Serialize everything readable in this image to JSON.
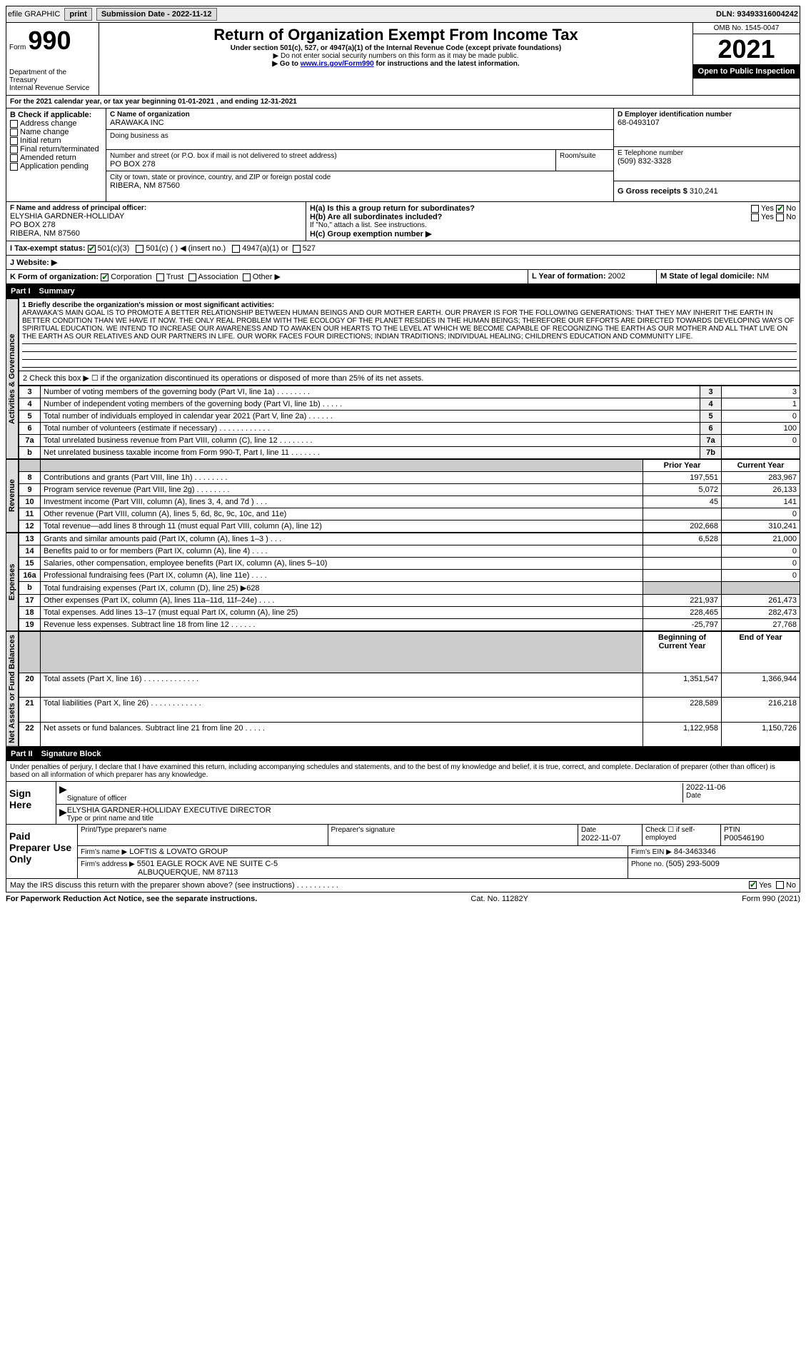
{
  "topbar": {
    "efile": "efile GRAPHIC",
    "print": "print",
    "submission_label": "Submission Date - 2022-11-12",
    "dln": "DLN: 93493316004242"
  },
  "header": {
    "form_prefix": "Form",
    "form_number": "990",
    "title": "Return of Organization Exempt From Income Tax",
    "subtitle": "Under section 501(c), 527, or 4947(a)(1) of the Internal Revenue Code (except private foundations)",
    "note1": "▶ Do not enter social security numbers on this form as it may be made public.",
    "note2_pre": "▶ Go to ",
    "note2_link": "www.irs.gov/Form990",
    "note2_post": " for instructions and the latest information.",
    "dept": "Department of the Treasury",
    "irs": "Internal Revenue Service",
    "omb": "OMB No. 1545-0047",
    "year": "2021",
    "public": "Open to Public Inspection"
  },
  "sectionA": {
    "period": "For the 2021 calendar year, or tax year beginning 01-01-2021    , and ending 12-31-2021",
    "check_label": "B Check if applicable:",
    "checks": [
      "Address change",
      "Name change",
      "Initial return",
      "Final return/terminated",
      "Amended return",
      "Application pending"
    ],
    "c_label": "C Name of organization",
    "org_name": "ARAWAKA INC",
    "dba_label": "Doing business as",
    "addr_label": "Number and street (or P.O. box if mail is not delivered to street address)",
    "room_label": "Room/suite",
    "address": "PO BOX 278",
    "city_label": "City or town, state or province, country, and ZIP or foreign postal code",
    "city": "RIBERA, NM  87560",
    "d_label": "D Employer identification number",
    "ein": "68-0493107",
    "e_label": "E Telephone number",
    "phone": "(509) 832-3328",
    "g_label": "G Gross receipts $",
    "gross": "310,241",
    "f_label": "F  Name and address of principal officer:",
    "officer_name": "ELYSHIA GARDNER-HOLLIDAY",
    "officer_addr1": "PO BOX 278",
    "officer_addr2": "RIBERA, NM  87560",
    "h_a": "H(a)  Is this a group return for subordinates?",
    "h_b": "H(b)  Are all subordinates included?",
    "h_note": "If \"No,\" attach a list. See instructions.",
    "h_c": "H(c)  Group exemption number ▶",
    "i_label": "I   Tax-exempt status:",
    "i_501c3": "501(c)(3)",
    "i_501c": "501(c) (   ) ◀ (insert no.)",
    "i_4947": "4947(a)(1) or",
    "i_527": "527",
    "j_label": "J   Website: ▶",
    "k_label": "K Form of organization:",
    "k_corp": "Corporation",
    "k_trust": "Trust",
    "k_assoc": "Association",
    "k_other": "Other ▶",
    "l_label": "L Year of formation:",
    "l_val": "2002",
    "m_label": "M State of legal domicile:",
    "m_val": "NM",
    "yes": "Yes",
    "no": "No"
  },
  "part1": {
    "label": "Part I",
    "title": "Summary",
    "side_ag": "Activities & Governance",
    "side_rev": "Revenue",
    "side_exp": "Expenses",
    "side_net": "Net Assets or Fund Balances",
    "line1_label": "1   Briefly describe the organization's mission or most significant activities:",
    "mission": "ARAWAKA'S MAIN GOAL IS TO PROMOTE A BETTER RELATIONSHIP BETWEEN HUMAN BEINGS AND OUR MOTHER EARTH. OUR PRAYER IS FOR THE FOLLOWING GENERATIONS: THAT THEY MAY INHERIT THE EARTH IN BETTER CONDITION THAN WE HAVE IT NOW. THE ONLY REAL PROBLEM WITH THE ECOLOGY OF THE PLANET RESIDES IN THE HUMAN BEINGS; THEREFORE OUR EFFORTS ARE DIRECTED TOWARDS DEVELOPING WAYS OF SPIRITUAL EDUCATION. WE INTEND TO INCREASE OUR AWARENESS AND TO AWAKEN OUR HEARTS TO THE LEVEL AT WHICH WE BECOME CAPABLE OF RECOGNIZING THE EARTH AS OUR MOTHER AND ALL THAT LIVE ON THE EARTH AS OUR RELATIVES AND OUR PARTNERS IN LIFE. OUR WORK FACES FOUR DIRECTIONS; INDIAN TRADITIONS; INDIVIDUAL HEALING; CHILDREN'S EDUCATION AND COMMUNITY LIFE.",
    "line2": "2   Check this box ▶ ☐  if the organization discontinued its operations or disposed of more than 25% of its net assets.",
    "gov_rows": [
      {
        "n": "3",
        "label": "Number of voting members of the governing body (Part VI, line 1a)   .    .    .    .    .    .    .    .",
        "box": "3",
        "val": "3"
      },
      {
        "n": "4",
        "label": "Number of independent voting members of the governing body (Part VI, line 1b)   .    .    .    .    .",
        "box": "4",
        "val": "1"
      },
      {
        "n": "5",
        "label": "Total number of individuals employed in calendar year 2021 (Part V, line 2a)   .    .    .    .    .    .",
        "box": "5",
        "val": "0"
      },
      {
        "n": "6",
        "label": "Total number of volunteers (estimate if necessary)   .    .    .    .    .    .    .    .    .    .    .    .",
        "box": "6",
        "val": "100"
      },
      {
        "n": "7a",
        "label": "Total unrelated business revenue from Part VIII, column (C), line 12   .    .    .    .    .    .    .    .",
        "box": "7a",
        "val": "0"
      },
      {
        "n": "b",
        "label": "Net unrelated business taxable income from Form 990-T, Part I, line 11   .    .    .    .    .    .    .",
        "box": "7b",
        "val": ""
      }
    ],
    "col_prior": "Prior Year",
    "col_curr": "Current Year",
    "rev_rows": [
      {
        "n": "8",
        "label": "Contributions and grants (Part VIII, line 1h)   .    .    .    .    .    .    .    .",
        "p": "197,551",
        "c": "283,967"
      },
      {
        "n": "9",
        "label": "Program service revenue (Part VIII, line 2g)   .    .    .    .    .    .    .    .",
        "p": "5,072",
        "c": "26,133"
      },
      {
        "n": "10",
        "label": "Investment income (Part VIII, column (A), lines 3, 4, and 7d )   .    .    .",
        "p": "45",
        "c": "141"
      },
      {
        "n": "11",
        "label": "Other revenue (Part VIII, column (A), lines 5, 6d, 8c, 9c, 10c, and 11e)",
        "p": "",
        "c": "0"
      },
      {
        "n": "12",
        "label": "Total revenue—add lines 8 through 11 (must equal Part VIII, column (A), line 12)",
        "p": "202,668",
        "c": "310,241"
      }
    ],
    "exp_rows": [
      {
        "n": "13",
        "label": "Grants and similar amounts paid (Part IX, column (A), lines 1–3 )   .    .    .",
        "p": "6,528",
        "c": "21,000"
      },
      {
        "n": "14",
        "label": "Benefits paid to or for members (Part IX, column (A), line 4)   .    .    .    .",
        "p": "",
        "c": "0"
      },
      {
        "n": "15",
        "label": "Salaries, other compensation, employee benefits (Part IX, column (A), lines 5–10)",
        "p": "",
        "c": "0"
      },
      {
        "n": "16a",
        "label": "Professional fundraising fees (Part IX, column (A), line 11e)   .    .    .    .",
        "p": "",
        "c": "0"
      },
      {
        "n": "b",
        "label": "Total fundraising expenses (Part IX, column (D), line 25) ▶628",
        "p": "gray",
        "c": "gray"
      },
      {
        "n": "17",
        "label": "Other expenses (Part IX, column (A), lines 11a–11d, 11f–24e)   .    .    .    .",
        "p": "221,937",
        "c": "261,473"
      },
      {
        "n": "18",
        "label": "Total expenses. Add lines 13–17 (must equal Part IX, column (A), line 25)",
        "p": "228,465",
        "c": "282,473"
      },
      {
        "n": "19",
        "label": "Revenue less expenses. Subtract line 18 from line 12   .    .    .    .    .    .",
        "p": "-25,797",
        "c": "27,768"
      }
    ],
    "col_boy": "Beginning of Current Year",
    "col_eoy": "End of Year",
    "net_rows": [
      {
        "n": "20",
        "label": "Total assets (Part X, line 16)   .    .    .    .    .    .    .    .    .    .    .    .    .",
        "p": "1,351,547",
        "c": "1,366,944"
      },
      {
        "n": "21",
        "label": "Total liabilities (Part X, line 26)   .    .    .    .    .    .    .    .    .    .    .    .",
        "p": "228,589",
        "c": "216,218"
      },
      {
        "n": "22",
        "label": "Net assets or fund balances. Subtract line 21 from line 20   .    .    .    .    .",
        "p": "1,122,958",
        "c": "1,150,726"
      }
    ]
  },
  "part2": {
    "label": "Part II",
    "title": "Signature Block",
    "penalty": "Under penalties of perjury, I declare that I have examined this return, including accompanying schedules and statements, and to the best of my knowledge and belief, it is true, correct, and complete. Declaration of preparer (other than officer) is based on all information of which preparer has any knowledge.",
    "sign_here": "Sign Here",
    "sig_officer": "Signature of officer",
    "sig_date": "2022-11-06",
    "date_lbl": "Date",
    "officer_printed": "ELYSHIA GARDNER-HOLLIDAY EXECUTIVE DIRECTOR",
    "type_name": "Type or print name and title",
    "paid": "Paid Preparer Use Only",
    "prep_name_lbl": "Print/Type preparer's name",
    "prep_sig_lbl": "Preparer's signature",
    "prep_date_lbl": "Date",
    "prep_date": "2022-11-07",
    "check_self": "Check ☐ if self-employed",
    "ptin_lbl": "PTIN",
    "ptin": "P00546190",
    "firm_name_lbl": "Firm's name    ▶",
    "firm_name": "LOFTIS & LOVATO GROUP",
    "firm_ein_lbl": "Firm's EIN ▶",
    "firm_ein": "84-3463346",
    "firm_addr_lbl": "Firm's address ▶",
    "firm_addr1": "5501 EAGLE ROCK AVE NE SUITE C-5",
    "firm_addr2": "ALBUQUERQUE, NM  87113",
    "firm_phone_lbl": "Phone no.",
    "firm_phone": "(505) 293-5009",
    "discuss": "May the IRS discuss this return with the preparer shown above? (see instructions)   .    .    .    .    .    .    .    .    .    .",
    "footer_left": "For Paperwork Reduction Act Notice, see the separate instructions.",
    "footer_mid": "Cat. No. 11282Y",
    "footer_right": "Form 990 (2021)"
  }
}
